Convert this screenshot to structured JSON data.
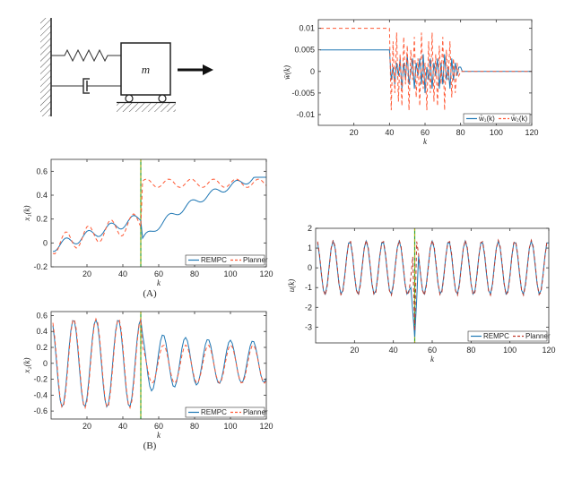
{
  "diagram": {
    "mass_label": "m"
  },
  "chart_data": [
    {
      "id": "w",
      "type": "line",
      "xlabel": "k",
      "ylabel": "w̄(k)",
      "xlim": [
        0,
        120
      ],
      "ylim": [
        -0.0125,
        0.012
      ],
      "xticks": [
        20,
        40,
        60,
        80,
        100,
        120
      ],
      "yticks": [
        0.01,
        0.005,
        0,
        -0.005,
        -0.01
      ],
      "ytick_labels": [
        "0.01",
        "0.005",
        "0",
        "-0.005",
        "-0.01"
      ],
      "legend": "bottom-right",
      "grid": false,
      "series": [
        {
          "name": "w̄₁(k)",
          "color": "#1f77b4",
          "dash": "",
          "x": [
            1,
            39,
            40,
            41,
            42,
            43,
            44,
            45,
            46,
            47,
            48,
            49,
            50,
            51,
            52,
            53,
            54,
            55,
            56,
            57,
            58,
            59,
            60,
            61,
            62,
            63,
            64,
            65,
            66,
            67,
            68,
            69,
            70,
            71,
            72,
            73,
            74,
            75,
            76,
            77,
            78,
            79,
            80,
            81,
            82,
            120
          ],
          "y": [
            0.005,
            0.005,
            0.005,
            -0.002,
            0.001,
            -0.003,
            0.002,
            -0.001,
            0.003,
            -0.004,
            0.002,
            -0.002,
            0.004,
            -0.003,
            0,
            0.003,
            -0.004,
            0.002,
            -0.001,
            0.003,
            -0.003,
            0.004,
            -0.005,
            0.001,
            -0.002,
            0.003,
            -0.004,
            0.002,
            -0.001,
            0.003,
            -0.004,
            0.002,
            -0.003,
            0.004,
            -0.002,
            0.001,
            -0.004,
            0.003,
            -0.002,
            0.002,
            -0.001,
            0.001,
            0.001,
            0,
            0,
            0
          ]
        },
        {
          "name": "w̄₂(k)",
          "color": "#ff5a36",
          "dash": "4,3",
          "x": [
            1,
            39,
            40,
            41,
            42,
            43,
            44,
            45,
            46,
            47,
            48,
            49,
            50,
            51,
            52,
            53,
            54,
            55,
            56,
            57,
            58,
            59,
            60,
            61,
            62,
            63,
            64,
            65,
            66,
            67,
            68,
            69,
            70,
            71,
            72,
            73,
            74,
            75,
            76,
            77,
            78,
            79,
            80,
            82,
            120
          ],
          "y": [
            0.01,
            0.01,
            0.01,
            -0.009,
            0.007,
            -0.005,
            0.009,
            -0.007,
            0.004,
            -0.008,
            0.008,
            -0.003,
            0.006,
            -0.009,
            0.005,
            -0.002,
            0.008,
            -0.006,
            0.003,
            -0.008,
            0.009,
            -0.004,
            0.002,
            -0.009,
            0.007,
            -0.005,
            0.009,
            -0.007,
            0.004,
            -0.008,
            0.006,
            -0.003,
            0.008,
            -0.009,
            0.005,
            -0.002,
            0.007,
            -0.006,
            0.003,
            -0.005,
            0.002,
            -0.001,
            0,
            0,
            0
          ]
        }
      ]
    },
    {
      "id": "x1",
      "type": "line",
      "xlabel": "k",
      "ylabel": "x₁(k)",
      "xlim": [
        0,
        120
      ],
      "ylim": [
        -0.2,
        0.7
      ],
      "xticks": [
        20,
        40,
        60,
        80,
        100,
        120
      ],
      "yticks": [
        0.6,
        0.4,
        0.2,
        0,
        -0.2
      ],
      "ytick_labels": [
        "0.6",
        "0.4",
        "0.2",
        "0",
        "-0.2"
      ],
      "vline": 50,
      "panel_label": "(A)",
      "legend": "bottom-right",
      "grid": false,
      "series": [
        {
          "name": "REMPC",
          "color": "#1f77b4",
          "dash": "",
          "kind": "x1_rempc"
        },
        {
          "name": "Planner",
          "color": "#ff5a36",
          "dash": "4,3",
          "kind": "x1_planner"
        }
      ]
    },
    {
      "id": "x2",
      "type": "line",
      "xlabel": "k",
      "ylabel": "x₂(k)",
      "xlim": [
        0,
        120
      ],
      "ylim": [
        -0.7,
        0.65
      ],
      "xticks": [
        20,
        40,
        60,
        80,
        100,
        120
      ],
      "yticks": [
        0.6,
        0.4,
        0.2,
        0,
        -0.2,
        -0.4,
        -0.6
      ],
      "ytick_labels": [
        "0.6",
        "0.4",
        "0.2",
        "0",
        "-0.2",
        "-0.4",
        "-0.6"
      ],
      "vline": 50,
      "panel_label": "(B)",
      "legend": "bottom-right",
      "grid": false,
      "series": [
        {
          "name": "REMPC",
          "color": "#1f77b4",
          "dash": "",
          "kind": "x2_rempc"
        },
        {
          "name": "Planner",
          "color": "#ff5a36",
          "dash": "4,3",
          "kind": "x2_planner"
        }
      ]
    },
    {
      "id": "u",
      "type": "line",
      "xlabel": "k",
      "ylabel": "u(k)",
      "xlim": [
        0,
        120
      ],
      "ylim": [
        -3.8,
        2
      ],
      "xticks": [
        20,
        40,
        60,
        80,
        100,
        120
      ],
      "yticks": [
        2,
        1,
        0,
        -1,
        -2,
        -3
      ],
      "ytick_labels": [
        "2",
        "1",
        "0",
        "-1",
        "-2",
        "-3"
      ],
      "vline": 51,
      "legend": "bottom-right",
      "grid": false,
      "series": [
        {
          "name": "REMPC",
          "color": "#1f77b4",
          "dash": "",
          "kind": "u_rempc"
        },
        {
          "name": "Planner",
          "color": "#c0392b",
          "dash": "4,3",
          "kind": "u_planner"
        }
      ]
    }
  ]
}
